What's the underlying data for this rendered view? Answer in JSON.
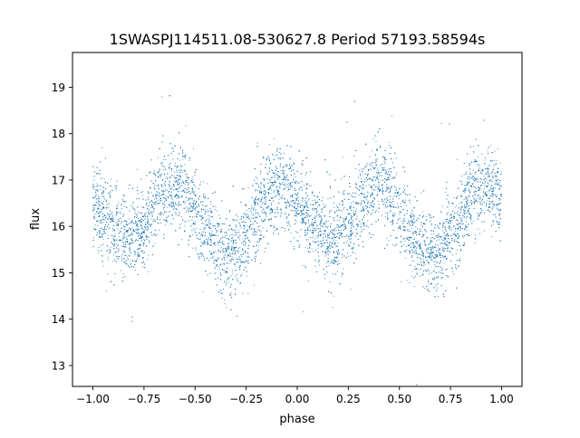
{
  "chart_data": {
    "type": "scatter",
    "title": "1SWASPJ114511.08-530627.8 Period 57193.58594s",
    "xlabel": "phase",
    "ylabel": "flux",
    "xlim": [
      -1.1,
      1.1
    ],
    "ylim": [
      12.55,
      19.75
    ],
    "grid": false,
    "xticks": [
      -1.0,
      -0.75,
      -0.5,
      -0.25,
      0.0,
      0.25,
      0.5,
      0.75,
      1.0
    ],
    "xtick_labels": [
      "−1.00",
      "−0.75",
      "−0.50",
      "−0.25",
      "0.00",
      "0.25",
      "0.50",
      "0.75",
      "1.00"
    ],
    "yticks": [
      13,
      14,
      15,
      16,
      17,
      18,
      19
    ],
    "ytick_labels": [
      "13",
      "14",
      "15",
      "16",
      "17",
      "18",
      "19"
    ],
    "series": [
      {
        "color": "#1f77b4",
        "description": "folded light curve, phase -1 to 1 (two cycles), double-humped sinusoid",
        "x": [
          -1.0,
          -0.95,
          -0.9,
          -0.85,
          -0.8,
          -0.75,
          -0.7,
          -0.65,
          -0.6,
          -0.55,
          -0.5,
          -0.45,
          -0.4,
          -0.35,
          -0.3,
          -0.25,
          -0.2,
          -0.15,
          -0.1,
          -0.05,
          0.0,
          0.05,
          0.1,
          0.15,
          0.2,
          0.25,
          0.3,
          0.35,
          0.4,
          0.45,
          0.5,
          0.55,
          0.6,
          0.65,
          0.7,
          0.75,
          0.8,
          0.85,
          0.9,
          0.95,
          1.0
        ],
        "y": [
          16.6,
          16.2,
          15.9,
          15.75,
          15.8,
          16.05,
          16.45,
          16.8,
          16.95,
          16.75,
          16.4,
          15.95,
          15.6,
          15.4,
          15.45,
          15.8,
          16.25,
          16.6,
          16.8,
          16.8,
          16.6,
          16.2,
          15.9,
          15.75,
          15.8,
          16.05,
          16.45,
          16.8,
          16.95,
          16.75,
          16.4,
          15.95,
          15.6,
          15.4,
          15.45,
          15.8,
          16.25,
          16.6,
          16.8,
          16.8,
          16.6
        ],
        "scatter_sigma": 0.45,
        "approx_point_count": 9000
      }
    ]
  }
}
